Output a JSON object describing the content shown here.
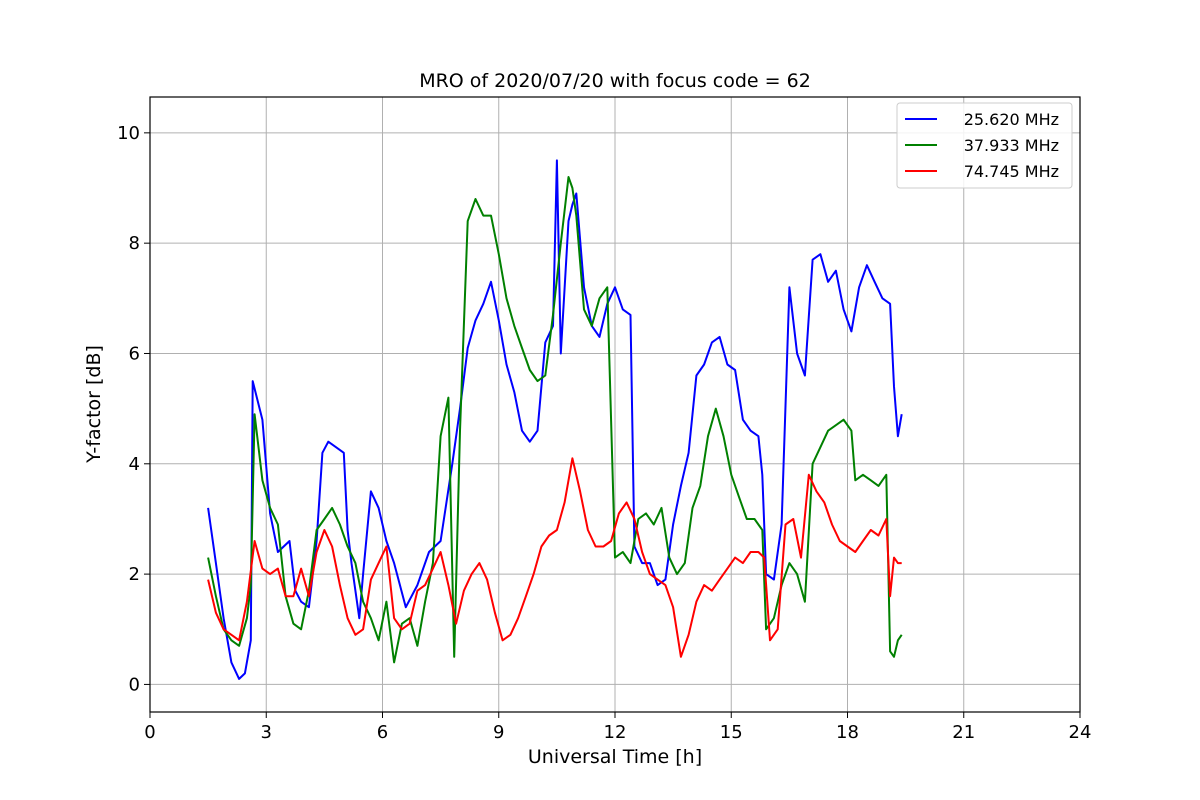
{
  "chart_data": {
    "type": "line",
    "title": "MRO of 2020/07/20 with focus code = 62",
    "xlabel": "Universal Time [h]",
    "ylabel": "Y-factor [dB]",
    "xlim": [
      0,
      24
    ],
    "ylim": [
      -0.5,
      10.65
    ],
    "xticks": [
      0,
      3,
      6,
      9,
      12,
      15,
      18,
      21,
      24
    ],
    "yticks": [
      0,
      2,
      4,
      6,
      8,
      10
    ],
    "xtick_labels": [
      "0",
      "3",
      "6",
      "9",
      "12",
      "15",
      "18",
      "21",
      "24"
    ],
    "ytick_labels": [
      "0",
      "2",
      "4",
      "6",
      "8",
      "10"
    ],
    "grid": true,
    "legend_position": "top-right",
    "series": [
      {
        "name": "25.620 MHz",
        "color": "#0000ff",
        "x": [
          1.5,
          1.7,
          1.9,
          2.1,
          2.3,
          2.45,
          2.6,
          2.65,
          2.9,
          3.1,
          3.3,
          3.6,
          3.75,
          3.9,
          4.1,
          4.3,
          4.45,
          4.6,
          4.8,
          5.0,
          5.1,
          5.2,
          5.4,
          5.5,
          5.7,
          5.9,
          6.1,
          6.3,
          6.6,
          6.9,
          7.2,
          7.5,
          7.8,
          8.0,
          8.2,
          8.4,
          8.6,
          8.8,
          9.0,
          9.2,
          9.4,
          9.6,
          9.8,
          10.0,
          10.2,
          10.4,
          10.5,
          10.6,
          10.8,
          10.9,
          11.0,
          11.2,
          11.4,
          11.6,
          11.8,
          12.0,
          12.2,
          12.4,
          12.5,
          12.7,
          12.9,
          13.1,
          13.3,
          13.5,
          13.7,
          13.9,
          14.1,
          14.3,
          14.5,
          14.7,
          14.9,
          15.1,
          15.3,
          15.5,
          15.7,
          15.8,
          15.9,
          16.1,
          16.3,
          16.5,
          16.7,
          16.9,
          17.1,
          17.3,
          17.5,
          17.7,
          17.9,
          18.1,
          18.3,
          18.5,
          18.7,
          18.9,
          19.1,
          19.2,
          19.3,
          19.4
        ],
        "y": [
          3.2,
          2.2,
          1.2,
          0.4,
          0.1,
          0.2,
          0.8,
          5.5,
          4.8,
          3.1,
          2.4,
          2.6,
          1.7,
          1.5,
          1.4,
          2.6,
          4.2,
          4.4,
          4.3,
          4.2,
          2.8,
          2.2,
          1.2,
          2.0,
          3.5,
          3.2,
          2.6,
          2.2,
          1.4,
          1.8,
          2.4,
          2.6,
          4.0,
          5.0,
          6.1,
          6.6,
          6.9,
          7.3,
          6.6,
          5.8,
          5.3,
          4.6,
          4.4,
          4.6,
          6.2,
          6.5,
          9.5,
          6.0,
          8.4,
          8.7,
          8.9,
          7.2,
          6.5,
          6.3,
          6.9,
          7.2,
          6.8,
          6.7,
          2.5,
          2.2,
          2.2,
          1.8,
          1.9,
          2.9,
          3.6,
          4.2,
          5.6,
          5.8,
          6.2,
          6.3,
          5.8,
          5.7,
          4.8,
          4.6,
          4.5,
          3.8,
          2.0,
          1.9,
          2.9,
          7.2,
          6.0,
          5.6,
          7.7,
          7.8,
          7.3,
          7.5,
          6.8,
          6.4,
          7.2,
          7.6,
          7.3,
          7.0,
          6.9,
          5.4,
          4.5,
          4.9
        ]
      },
      {
        "name": "37.933 MHz",
        "color": "#008000",
        "x": [
          1.5,
          1.7,
          1.9,
          2.1,
          2.3,
          2.5,
          2.6,
          2.7,
          2.9,
          3.1,
          3.3,
          3.5,
          3.7,
          3.9,
          4.1,
          4.3,
          4.5,
          4.7,
          4.9,
          5.1,
          5.3,
          5.5,
          5.7,
          5.9,
          6.1,
          6.3,
          6.5,
          6.7,
          6.9,
          7.1,
          7.3,
          7.5,
          7.7,
          7.85,
          8.0,
          8.2,
          8.4,
          8.6,
          8.8,
          9.0,
          9.2,
          9.4,
          9.6,
          9.8,
          10.0,
          10.2,
          10.4,
          10.6,
          10.8,
          10.9,
          11.0,
          11.2,
          11.4,
          11.6,
          11.8,
          12.0,
          12.2,
          12.4,
          12.6,
          12.8,
          13.0,
          13.2,
          13.4,
          13.6,
          13.8,
          14.0,
          14.2,
          14.4,
          14.6,
          14.8,
          15.0,
          15.2,
          15.4,
          15.6,
          15.8,
          15.9,
          16.1,
          16.3,
          16.5,
          16.7,
          16.9,
          17.1,
          17.3,
          17.5,
          17.7,
          17.9,
          18.1,
          18.2,
          18.4,
          18.6,
          18.8,
          19.0,
          19.1,
          19.2,
          19.3,
          19.4
        ],
        "y": [
          2.3,
          1.6,
          1.0,
          0.8,
          0.7,
          1.2,
          1.8,
          4.9,
          3.7,
          3.2,
          2.9,
          1.6,
          1.1,
          1.0,
          1.7,
          2.8,
          3.0,
          3.2,
          2.9,
          2.5,
          2.2,
          1.5,
          1.2,
          0.8,
          1.5,
          0.4,
          1.1,
          1.2,
          0.7,
          1.5,
          2.2,
          4.5,
          5.2,
          0.5,
          4.6,
          8.4,
          8.8,
          8.5,
          8.5,
          7.8,
          7.0,
          6.5,
          6.1,
          5.7,
          5.5,
          5.6,
          6.7,
          8.0,
          9.2,
          9.0,
          8.5,
          6.8,
          6.5,
          7.0,
          7.2,
          2.3,
          2.4,
          2.2,
          3.0,
          3.1,
          2.9,
          3.2,
          2.3,
          2.0,
          2.2,
          3.2,
          3.6,
          4.5,
          5.0,
          4.5,
          3.8,
          3.4,
          3.0,
          3.0,
          2.8,
          1.0,
          1.2,
          1.8,
          2.2,
          2.0,
          1.5,
          4.0,
          4.3,
          4.6,
          4.7,
          4.8,
          4.6,
          3.7,
          3.8,
          3.7,
          3.6,
          3.8,
          0.6,
          0.5,
          0.8,
          0.9
        ]
      },
      {
        "name": "74.745 MHz",
        "color": "#ff0000",
        "x": [
          1.5,
          1.7,
          1.9,
          2.1,
          2.3,
          2.5,
          2.7,
          2.9,
          3.1,
          3.3,
          3.5,
          3.7,
          3.9,
          4.1,
          4.3,
          4.5,
          4.7,
          4.9,
          5.1,
          5.3,
          5.5,
          5.7,
          5.9,
          6.1,
          6.3,
          6.5,
          6.7,
          6.9,
          7.1,
          7.3,
          7.5,
          7.7,
          7.9,
          8.1,
          8.3,
          8.5,
          8.7,
          8.9,
          9.1,
          9.3,
          9.5,
          9.7,
          9.9,
          10.1,
          10.3,
          10.5,
          10.7,
          10.9,
          11.1,
          11.3,
          11.5,
          11.7,
          11.9,
          12.1,
          12.3,
          12.5,
          12.7,
          12.9,
          13.1,
          13.3,
          13.5,
          13.7,
          13.9,
          14.1,
          14.3,
          14.5,
          14.7,
          14.9,
          15.1,
          15.3,
          15.5,
          15.7,
          15.85,
          16.0,
          16.2,
          16.4,
          16.6,
          16.8,
          17.0,
          17.2,
          17.4,
          17.6,
          17.8,
          18.0,
          18.2,
          18.4,
          18.6,
          18.8,
          19.0,
          19.1,
          19.2,
          19.3,
          19.4
        ],
        "y": [
          1.9,
          1.3,
          1.0,
          0.9,
          0.8,
          1.5,
          2.6,
          2.1,
          2.0,
          2.1,
          1.6,
          1.6,
          2.1,
          1.6,
          2.4,
          2.8,
          2.5,
          1.8,
          1.2,
          0.9,
          1.0,
          1.9,
          2.2,
          2.5,
          1.2,
          1.0,
          1.1,
          1.7,
          1.8,
          2.1,
          2.4,
          1.8,
          1.1,
          1.7,
          2.0,
          2.2,
          1.9,
          1.3,
          0.8,
          0.9,
          1.2,
          1.6,
          2.0,
          2.5,
          2.7,
          2.8,
          3.3,
          4.1,
          3.5,
          2.8,
          2.5,
          2.5,
          2.6,
          3.1,
          3.3,
          3.0,
          2.4,
          2.0,
          1.9,
          1.8,
          1.4,
          0.5,
          0.9,
          1.5,
          1.8,
          1.7,
          1.9,
          2.1,
          2.3,
          2.2,
          2.4,
          2.4,
          2.3,
          0.8,
          1.0,
          2.9,
          3.0,
          2.3,
          3.8,
          3.5,
          3.3,
          2.9,
          2.6,
          2.5,
          2.4,
          2.6,
          2.8,
          2.7,
          3.0,
          1.6,
          2.3,
          2.2,
          2.2
        ]
      }
    ]
  }
}
